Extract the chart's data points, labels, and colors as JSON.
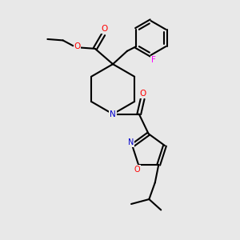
{
  "bg_color": "#e8e8e8",
  "line_color": "#000000",
  "bond_width": 1.5,
  "N_color": "#0000cc",
  "O_color": "#ff0000",
  "F_color": "#ff00ff",
  "figsize": [
    3.0,
    3.0
  ],
  "dpi": 100,
  "xlim": [
    0,
    10
  ],
  "ylim": [
    0,
    10
  ]
}
